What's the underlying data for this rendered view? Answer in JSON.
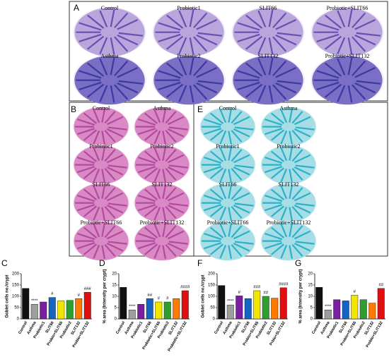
{
  "figure": {
    "A": {
      "letter": "A",
      "labels": [
        "Control",
        "Probiotic1",
        "SLIT66",
        "Probiotic+SLIT66",
        "Asthma",
        "Probiotic2",
        "SLIT132",
        "Probiotic+SLIT132"
      ]
    },
    "B": {
      "letter": "B",
      "labels": [
        "Control",
        "Asthma",
        "Probiotic1",
        "Probiotic2",
        "SLIT66",
        "SLIT132",
        "Probiotic+SLIT66",
        "Probiotic+SLIT132"
      ]
    },
    "E": {
      "letter": "E",
      "labels": [
        "Control",
        "Asthma",
        "Probiotic1",
        "Probiotic2",
        "SLIT66",
        "SLIT132",
        "Probiotic+SLIT66",
        "Probiotic+SLIT132"
      ]
    }
  },
  "chart_data": [
    {
      "type": "bar",
      "panel": "C",
      "ylabel": "Goblet cells no./crypt",
      "categories": [
        "Control",
        "Asthma",
        "Probiotic1",
        "SLIT66",
        "Probio+SLIT66",
        "Probiotic2",
        "SLIT132",
        "Probio+SLIT132"
      ],
      "values": [
        135,
        65,
        75,
        95,
        80,
        82,
        90,
        118
      ],
      "annotations": [
        null,
        "****",
        null,
        "#",
        null,
        null,
        "#",
        "###"
      ],
      "colors": [
        "#111111",
        "#9e9e9e",
        "#7b1fa2",
        "#1565c0",
        "#f2e600",
        "#2e9e2e",
        "#ff7a00",
        "#e01010"
      ],
      "ylim": [
        0,
        200
      ],
      "yticks": [
        0,
        50,
        100,
        150,
        200
      ]
    },
    {
      "type": "bar",
      "panel": "D",
      "ylabel": "% area (Intensity per crypt)",
      "categories": [
        "Control",
        "Asthma",
        "Probiotic1",
        "SLIT66",
        "Probiotic+SLIT66",
        "Probiotic2",
        "SLIT132",
        "Probiotic+SLIT132"
      ],
      "values": [
        14,
        4,
        6.5,
        9,
        7.5,
        7.5,
        9,
        12.5
      ],
      "annotations": [
        null,
        "****",
        null,
        "##",
        "#",
        "#",
        null,
        "####"
      ],
      "colors": [
        "#111111",
        "#9e9e9e",
        "#7b1fa2",
        "#1565c0",
        "#f2e600",
        "#2e9e2e",
        "#ff7a00",
        "#e01010"
      ],
      "ylim": [
        0,
        20
      ],
      "yticks": [
        0,
        5,
        10,
        15,
        20
      ]
    },
    {
      "type": "bar",
      "panel": "F",
      "ylabel": "Goblet cells no./crypt",
      "categories": [
        "Control",
        "Asthma",
        "Probiotic1",
        "SLIT66",
        "Probio+SLIT66",
        "Probiotic2",
        "SLIT132",
        "Prbio+SLIT132"
      ],
      "values": [
        148,
        62,
        102,
        90,
        125,
        100,
        92,
        138
      ],
      "annotations": [
        null,
        "****",
        "#",
        null,
        "###",
        "##",
        null,
        "####"
      ],
      "colors": [
        "#111111",
        "#9e9e9e",
        "#7b1fa2",
        "#1565c0",
        "#f2e600",
        "#2e9e2e",
        "#ff7a00",
        "#e01010"
      ],
      "ylim": [
        0,
        200
      ],
      "yticks": [
        0,
        50,
        100,
        150,
        200
      ]
    },
    {
      "type": "bar",
      "panel": "G",
      "ylabel": "% area (Intensity per crypt)",
      "categories": [
        "Control",
        "Asthma",
        "Probiotic1",
        "SLIT66",
        "Probio+SLIT66",
        "Probiotic2",
        "SLIT132",
        "Probio+SLIT132"
      ],
      "values": [
        14,
        4,
        8.5,
        8,
        10.5,
        8.5,
        7,
        13.5
      ],
      "annotations": [
        null,
        "****",
        null,
        null,
        "#",
        null,
        null,
        "##"
      ],
      "colors": [
        "#111111",
        "#9e9e9e",
        "#7b1fa2",
        "#1565c0",
        "#f2e600",
        "#2e9e2e",
        "#ff7a00",
        "#e01010"
      ],
      "ylim": [
        0,
        20
      ],
      "yticks": [
        0,
        5,
        10,
        15,
        20
      ]
    }
  ]
}
